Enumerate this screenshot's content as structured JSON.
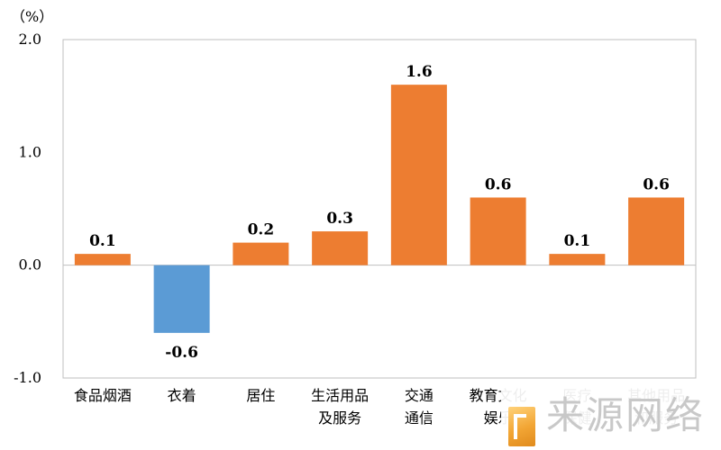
{
  "chart_data": {
    "type": "bar",
    "unit_label": "（%）",
    "categories": [
      [
        "食品烟酒"
      ],
      [
        "衣着"
      ],
      [
        "居住"
      ],
      [
        "生活用品",
        "及服务"
      ],
      [
        "交通",
        "通信"
      ],
      [
        "教育文化",
        "娱乐"
      ],
      [
        "医疗",
        "保健"
      ],
      [
        "其他用品",
        "和服务"
      ]
    ],
    "values": [
      0.1,
      -0.6,
      0.2,
      0.3,
      1.6,
      0.6,
      0.1,
      0.6
    ],
    "value_labels": [
      "0.1",
      "-0.6",
      "0.2",
      "0.3",
      "1.6",
      "0.6",
      "0.1",
      "0.6"
    ],
    "ylim": [
      -1.0,
      2.0
    ],
    "yticks": [
      2.0,
      1.0,
      0.0,
      -1.0
    ],
    "ytick_labels": [
      "2.0",
      "1.0",
      "0.0",
      "-1.0"
    ],
    "colors": {
      "positive": "#ED7D31",
      "negative": "#5B9BD5",
      "frame": "#bfbfbf",
      "text": "#000000"
    },
    "grid": false,
    "legend": "none"
  },
  "watermark": {
    "text": "来源网络"
  }
}
